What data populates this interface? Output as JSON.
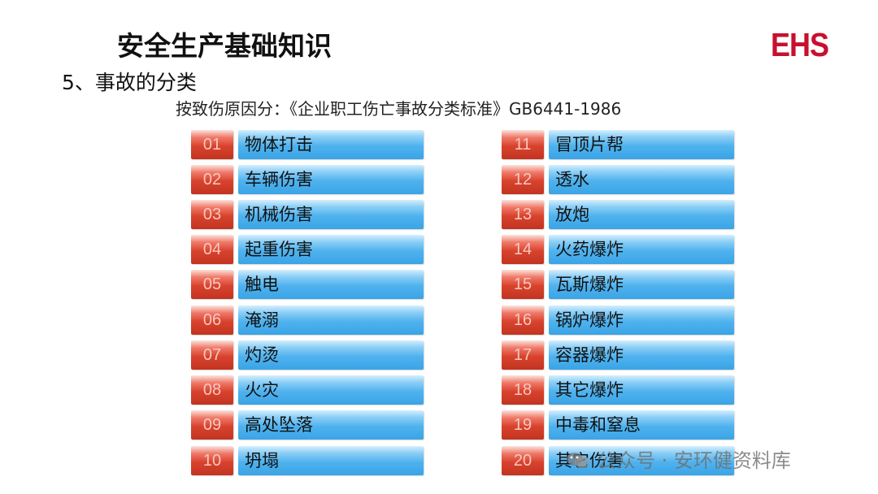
{
  "header": {
    "title": "安全生产基础知识",
    "logo": "EHS"
  },
  "section": {
    "heading": "5、事故的分类"
  },
  "subtitle": "按致伤原因分：《企业职工伤亡事故分类标准》GB6441-1986",
  "left_items": [
    {
      "num": "01",
      "label": "物体打击"
    },
    {
      "num": "02",
      "label": "车辆伤害"
    },
    {
      "num": "03",
      "label": "机械伤害"
    },
    {
      "num": "04",
      "label": "起重伤害"
    },
    {
      "num": "05",
      "label": "触电"
    },
    {
      "num": "06",
      "label": "淹溺"
    },
    {
      "num": "07",
      "label": "灼烫"
    },
    {
      "num": "08",
      "label": "火灾"
    },
    {
      "num": "09",
      "label": "高处坠落"
    },
    {
      "num": "10",
      "label": " 坍塌"
    }
  ],
  "right_items": [
    {
      "num": "11",
      "label": "冒顶片帮"
    },
    {
      "num": "12",
      "label": "透水"
    },
    {
      "num": "13",
      "label": "放炮"
    },
    {
      "num": "14",
      "label": "火药爆炸"
    },
    {
      "num": "15",
      "label": "瓦斯爆炸"
    },
    {
      "num": "16",
      "label": "锅炉爆炸"
    },
    {
      "num": "17",
      "label": "容器爆炸"
    },
    {
      "num": "18",
      "label": "其它爆炸"
    },
    {
      "num": "19",
      "label": "中毒和窒息"
    },
    {
      "num": "20",
      "label": "其它伤害"
    }
  ],
  "watermark": {
    "text": "公众号 · 安环健资料库",
    "icon": "wechat-icon"
  },
  "colors": {
    "number_box": "#d8432e",
    "label_box": "#4fb2ee",
    "logo": "#c8102e"
  }
}
